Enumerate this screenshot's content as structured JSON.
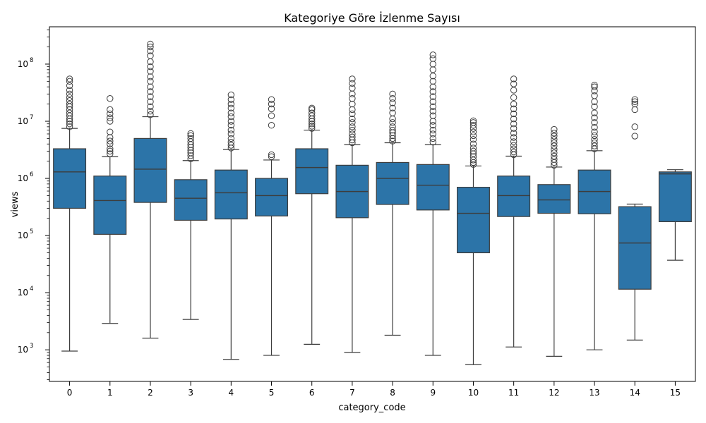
{
  "chart_data": {
    "type": "box",
    "title": "Kategoriye Göre İzlenme Sayısı",
    "xlabel": "category_code",
    "ylabel": "views",
    "yscale": "log",
    "ylim": [
      280,
      450000000
    ],
    "y_tick_values": [
      1000,
      10000,
      100000,
      1000000,
      10000000,
      100000000
    ],
    "y_tick_labels": [
      {
        "base": "10",
        "exp": "3"
      },
      {
        "base": "10",
        "exp": "4"
      },
      {
        "base": "10",
        "exp": "5"
      },
      {
        "base": "10",
        "exp": "6"
      },
      {
        "base": "10",
        "exp": "7"
      },
      {
        "base": "10",
        "exp": "8"
      }
    ],
    "box_color": "#2c74a8",
    "categories": [
      "0",
      "1",
      "2",
      "3",
      "4",
      "5",
      "6",
      "7",
      "8",
      "9",
      "10",
      "11",
      "12",
      "13",
      "14",
      "15"
    ],
    "boxes": [
      {
        "category": "0",
        "whisker_low": 950,
        "q1": 300000,
        "median": 1300000,
        "q3": 3300000,
        "whisker_high": 7500000,
        "outliers": [
          8000000,
          9000000,
          10000000,
          11000000,
          12500000,
          14000000,
          16000000,
          18000000,
          20000000,
          23000000,
          26000000,
          30000000,
          35000000,
          42000000,
          50000000,
          55000000
        ]
      },
      {
        "category": "1",
        "whisker_low": 2900,
        "q1": 105000,
        "median": 410000,
        "q3": 1100000,
        "whisker_high": 2400000,
        "outliers": [
          2700000,
          3000000,
          3300000,
          4000000,
          4500000,
          5200000,
          6500000,
          10000000,
          11500000,
          13500000,
          16000000,
          25000000
        ]
      },
      {
        "category": "2",
        "whisker_low": 1600,
        "q1": 380000,
        "median": 1450000,
        "q3": 5000000,
        "whisker_high": 12000000,
        "outliers": [
          13000000,
          15000000,
          18000000,
          22000000,
          27000000,
          33000000,
          40000000,
          50000000,
          60000000,
          75000000,
          90000000,
          110000000,
          140000000,
          170000000,
          200000000,
          225000000
        ]
      },
      {
        "category": "3",
        "whisker_low": 3400,
        "q1": 185000,
        "median": 450000,
        "q3": 950000,
        "whisker_high": 2050000,
        "outliers": [
          2200000,
          2500000,
          2800000,
          3100000,
          3500000,
          3900000,
          4400000,
          5000000,
          5600000,
          6100000
        ]
      },
      {
        "category": "4",
        "whisker_low": 680,
        "q1": 195000,
        "median": 560000,
        "q3": 1400000,
        "whisker_high": 3200000,
        "outliers": [
          3400000,
          3800000,
          4300000,
          5000000,
          6000000,
          7000000,
          8500000,
          10000000,
          12000000,
          14000000,
          17000000,
          20000000,
          24000000,
          29000000
        ]
      },
      {
        "category": "5",
        "whisker_low": 800,
        "q1": 220000,
        "median": 500000,
        "q3": 1000000,
        "whisker_high": 2100000,
        "outliers": [
          2400000,
          2600000,
          8500000,
          12500000,
          16500000,
          20000000,
          24000000
        ]
      },
      {
        "category": "6",
        "whisker_low": 1250,
        "q1": 540000,
        "median": 1550000,
        "q3": 3300000,
        "whisker_high": 7000000,
        "outliers": [
          7500000,
          8200000,
          9000000,
          10000000,
          11000000,
          12500000,
          14000000,
          16000000,
          17000000
        ]
      },
      {
        "category": "7",
        "whisker_low": 900,
        "q1": 205000,
        "median": 590000,
        "q3": 1700000,
        "whisker_high": 3900000,
        "outliers": [
          4200000,
          4700000,
          5300000,
          6000000,
          7000000,
          8000000,
          9500000,
          11000000,
          13500000,
          16000000,
          20000000,
          25000000,
          30000000,
          38000000,
          46000000,
          55000000
        ]
      },
      {
        "category": "8",
        "whisker_low": 1800,
        "q1": 350000,
        "median": 1000000,
        "q3": 1900000,
        "whisker_high": 4200000,
        "outliers": [
          4500000,
          5000000,
          5600000,
          6300000,
          7000000,
          8000000,
          9500000,
          11000000,
          14000000,
          17000000,
          21000000,
          25000000,
          30000000
        ]
      },
      {
        "category": "9",
        "whisker_low": 800,
        "q1": 280000,
        "median": 760000,
        "q3": 1750000,
        "whisker_high": 3900000,
        "outliers": [
          4300000,
          5000000,
          6000000,
          7000000,
          8500000,
          10000000,
          12500000,
          15000000,
          18000000,
          22000000,
          27000000,
          33000000,
          40000000,
          50000000,
          62000000,
          80000000,
          100000000,
          125000000,
          145000000
        ]
      },
      {
        "category": "10",
        "whisker_low": 550,
        "q1": 50000,
        "median": 245000,
        "q3": 700000,
        "whisker_high": 1650000,
        "outliers": [
          1750000,
          1900000,
          2100000,
          2400000,
          2700000,
          3000000,
          3400000,
          4000000,
          4800000,
          5600000,
          6500000,
          7500000,
          8500000,
          9500000,
          10200000
        ]
      },
      {
        "category": "11",
        "whisker_low": 1120,
        "q1": 215000,
        "median": 500000,
        "q3": 1100000,
        "whisker_high": 2450000,
        "outliers": [
          2600000,
          2900000,
          3300000,
          3800000,
          4400000,
          5200000,
          6200000,
          7500000,
          9000000,
          11000000,
          13500000,
          16500000,
          20000000,
          26000000,
          35000000,
          45000000,
          55000000
        ]
      },
      {
        "category": "12",
        "whisker_low": 770,
        "q1": 245000,
        "median": 420000,
        "q3": 780000,
        "whisker_high": 1580000,
        "outliers": [
          1700000,
          1900000,
          2150000,
          2450000,
          2800000,
          3200000,
          3700000,
          4200000,
          4800000,
          5500000,
          6200000,
          7200000
        ]
      },
      {
        "category": "13",
        "whisker_low": 1000,
        "q1": 240000,
        "median": 590000,
        "q3": 1400000,
        "whisker_high": 3050000,
        "outliers": [
          3300000,
          3700000,
          4200000,
          4800000,
          5600000,
          6500000,
          7800000,
          9500000,
          11500000,
          14000000,
          18000000,
          22000000,
          28000000,
          34000000,
          40000000,
          43000000
        ]
      },
      {
        "category": "14",
        "whisker_low": 1480,
        "q1": 11500,
        "median": 74000,
        "q3": 320000,
        "whisker_high": 355000,
        "outliers": [
          5500000,
          8000000,
          16000000,
          20000000,
          22000000,
          24000000
        ]
      },
      {
        "category": "15",
        "whisker_low": 37000,
        "q1": 175000,
        "median": 1200000,
        "q3": 1300000,
        "whisker_high": 1420000,
        "outliers": []
      }
    ]
  }
}
